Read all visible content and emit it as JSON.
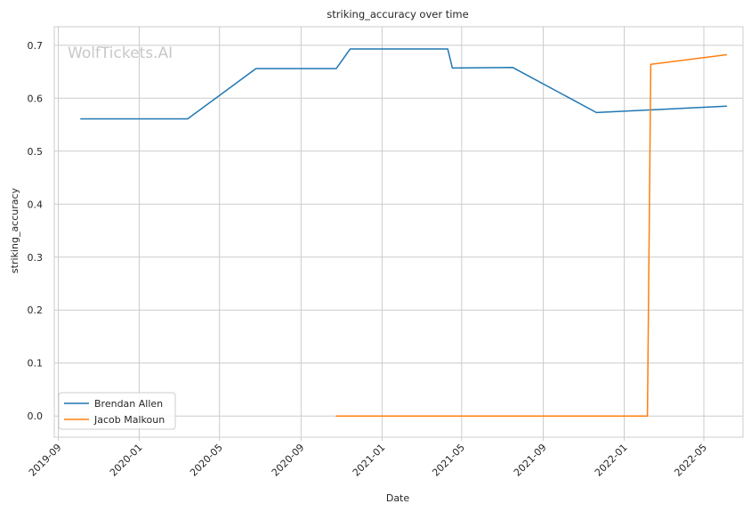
{
  "chart_data": {
    "type": "line",
    "title": "striking_accuracy over time",
    "xlabel": "Date",
    "ylabel": "striking_accuracy",
    "watermark": "WolfTickets.AI",
    "x_ticks": [
      "2019-09",
      "2020-01",
      "2020-05",
      "2020-09",
      "2021-01",
      "2021-05",
      "2021-09",
      "2022-01",
      "2022-05"
    ],
    "y_ticks": [
      "0.0",
      "0.1",
      "0.2",
      "0.3",
      "0.4",
      "0.5",
      "0.6",
      "0.7"
    ],
    "xlim": [
      "2019-08-26",
      "2022-06-29"
    ],
    "ylim": [
      -0.04,
      0.735
    ],
    "grid": true,
    "legend_position": "lower-left",
    "series": [
      {
        "name": "Brendan Allen",
        "color": "#1f77b4",
        "points": [
          [
            "2019-10-05",
            0.561
          ],
          [
            "2020-03-14",
            0.561
          ],
          [
            "2020-06-25",
            0.656
          ],
          [
            "2020-10-24",
            0.656
          ],
          [
            "2020-11-14",
            0.693
          ],
          [
            "2021-04-10",
            0.693
          ],
          [
            "2021-04-17",
            0.657
          ],
          [
            "2021-07-17",
            0.658
          ],
          [
            "2021-11-20",
            0.573
          ],
          [
            "2022-06-04",
            0.585
          ]
        ]
      },
      {
        "name": "Jacob Malkoun",
        "color": "#ff7f0e",
        "points": [
          [
            "2020-10-24",
            0.0
          ],
          [
            "2022-02-05",
            0.0
          ],
          [
            "2022-02-10",
            0.664
          ],
          [
            "2022-06-04",
            0.682
          ]
        ]
      }
    ]
  }
}
